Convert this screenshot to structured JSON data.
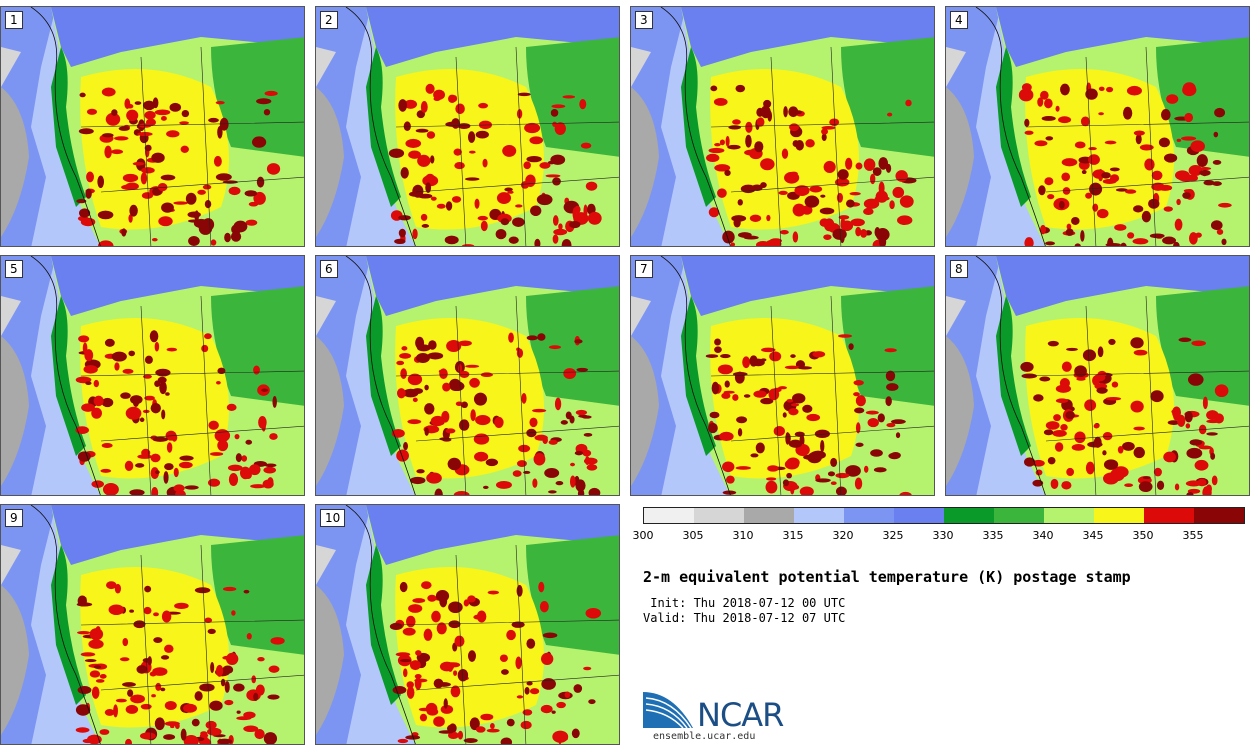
{
  "panels": [
    {
      "label": "1"
    },
    {
      "label": "2"
    },
    {
      "label": "3"
    },
    {
      "label": "4"
    },
    {
      "label": "5"
    },
    {
      "label": "6"
    },
    {
      "label": "7"
    },
    {
      "label": "8"
    },
    {
      "label": "9"
    },
    {
      "label": "10"
    }
  ],
  "colorbar": {
    "colors": [
      "#f0f0f0",
      "#d6d6d6",
      "#a9a9a9",
      "#b4c7fb",
      "#7d95f2",
      "#6a7ff0",
      "#0a9a2a",
      "#3cb53c",
      "#b5f36e",
      "#f8f51a",
      "#dd0a0a",
      "#8a0505"
    ],
    "ticks": [
      "300",
      "305",
      "310",
      "315",
      "320",
      "325",
      "330",
      "335",
      "340",
      "345",
      "350",
      "355"
    ]
  },
  "title": "2-m equivalent potential temperature (K) postage stamp",
  "init_line": " Init: Thu 2018-07-12 00 UTC",
  "valid_line": "Valid: Thu 2018-07-12 07 UTC",
  "logo": {
    "name": "NCAR",
    "url": "ensemble.ucar.edu"
  }
}
